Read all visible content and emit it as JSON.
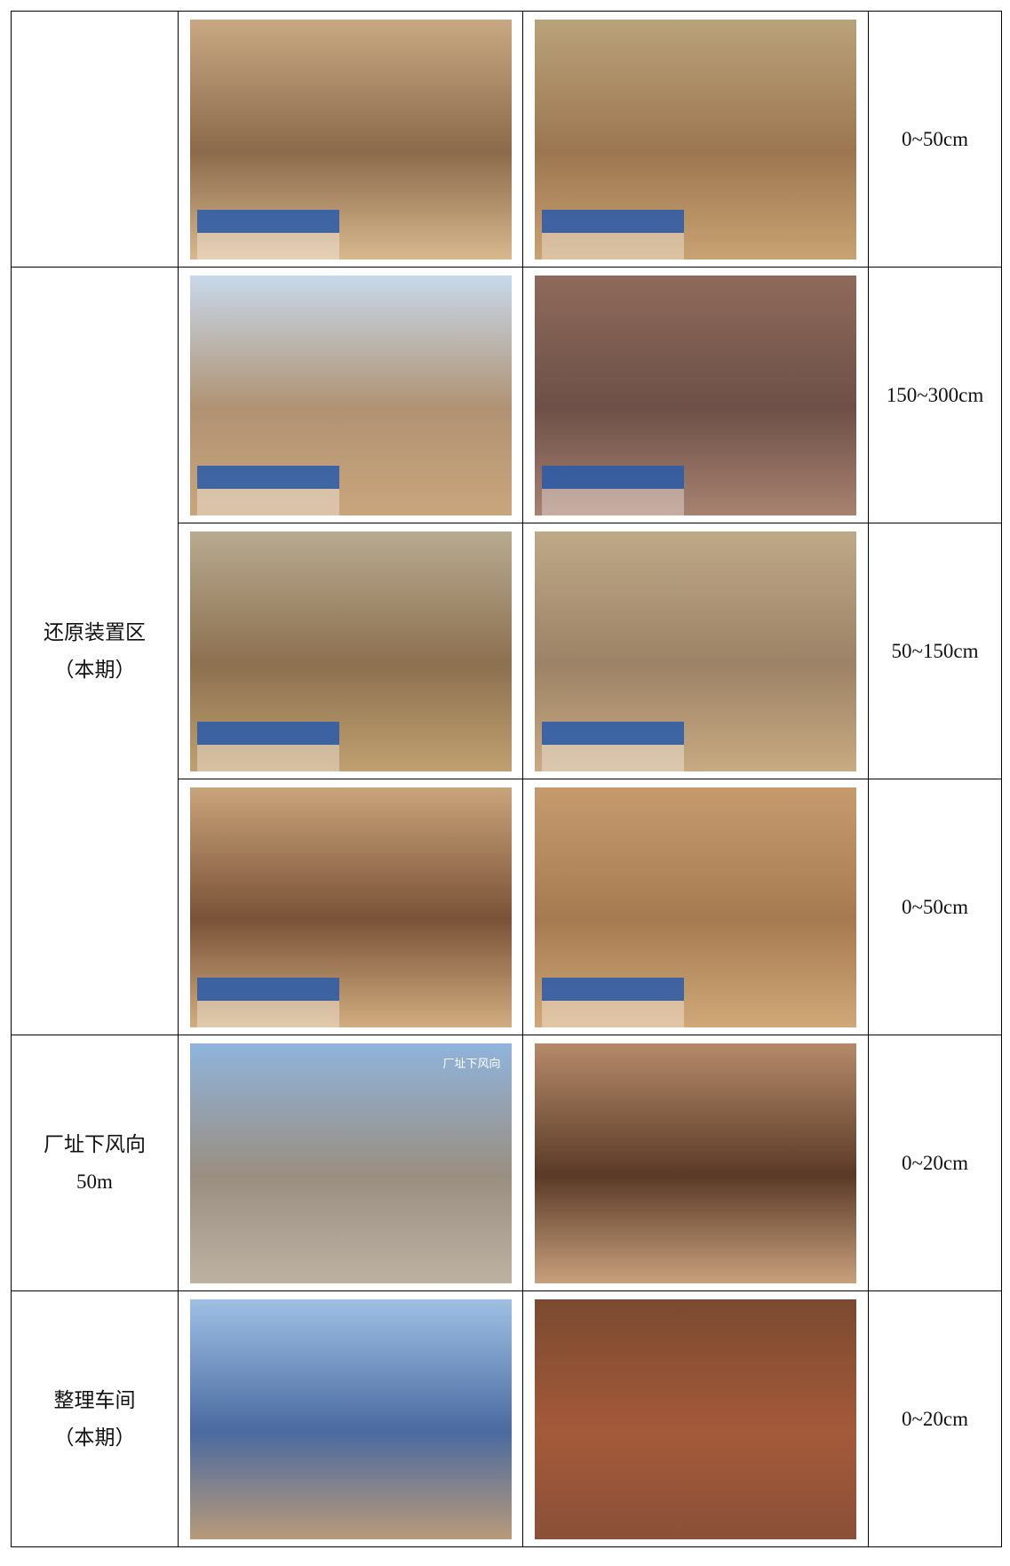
{
  "groups": [
    {
      "samples": [
        {
          "depth": "0~50cm"
        }
      ]
    },
    {
      "lines": [
        "还原装置区",
        "（本期）"
      ],
      "samples": [
        {
          "depth": "150~300cm"
        },
        {
          "depth": "50~150cm"
        },
        {
          "depth": "0~50cm"
        }
      ]
    },
    {
      "lines": [
        "厂址下风向",
        "50m"
      ],
      "samples": [
        {
          "caption": "厂址下风向",
          "depth": "0~20cm"
        }
      ]
    },
    {
      "lines": [
        "整理车间",
        "（本期）"
      ],
      "samples": [
        {
          "depth": "0~20cm"
        }
      ]
    }
  ]
}
